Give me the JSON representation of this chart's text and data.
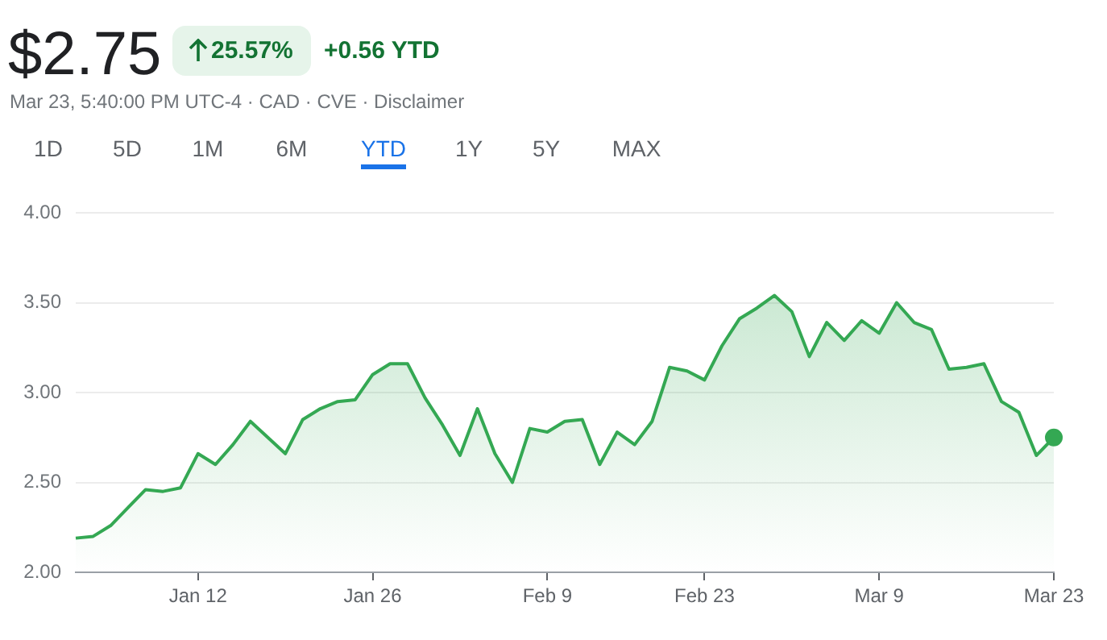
{
  "chart_data": {
    "type": "area",
    "title": "$2.75",
    "subtitle": "Mar 23, 5:40:00 PM UTC-4 · CAD · CVE · Disclaimer",
    "annotations": [
      "25.57%",
      "+0.56 YTD",
      "1D",
      "5D",
      "1M",
      "6M",
      "YTD",
      "1Y",
      "5Y",
      "MAX"
    ],
    "categories": [
      null,
      null,
      null,
      null,
      null,
      null,
      null,
      "Jan 12",
      null,
      null,
      null,
      null,
      null,
      null,
      null,
      null,
      null,
      "Jan 26",
      null,
      null,
      null,
      null,
      null,
      null,
      null,
      null,
      null,
      "Feb 9",
      null,
      null,
      null,
      null,
      null,
      null,
      null,
      null,
      "Feb 23",
      null,
      null,
      null,
      null,
      null,
      null,
      null,
      null,
      null,
      "Mar 9",
      null,
      null,
      null,
      null,
      null,
      null,
      null,
      null,
      null,
      "Mar 23"
    ],
    "series": [
      {
        "color": "#34a853",
        "marker": "none",
        "values": [
          2.19,
          2.2,
          2.26,
          2.36,
          2.46,
          2.45,
          2.47,
          2.66,
          2.6,
          2.71,
          2.84,
          2.75,
          2.66,
          2.85,
          2.91,
          2.95,
          2.96,
          3.1,
          3.16,
          3.16,
          2.97,
          2.82,
          2.65,
          2.91,
          2.66,
          2.5,
          2.8,
          2.78,
          2.84,
          2.85,
          2.6,
          2.78,
          2.71,
          2.84,
          3.14,
          3.12,
          3.07,
          3.26,
          3.41,
          3.47,
          3.54,
          3.45,
          3.2,
          3.39,
          3.29,
          3.4,
          3.33,
          3.5,
          3.39,
          3.35,
          3.13,
          3.14,
          3.16,
          2.95,
          2.89,
          2.65,
          2.75
        ]
      },
      {
        "type": "scatter",
        "color": "#34a853",
        "marker": "circle",
        "x": [
          "Mar 23"
        ],
        "values": [
          2.75
        ]
      }
    ],
    "ylim": [
      2,
      4
    ],
    "yticks": [
      {
        "value": 2,
        "label": "2.00"
      },
      {
        "value": 2.5,
        "label": "2.50"
      },
      {
        "value": 3,
        "label": "3.00"
      },
      {
        "value": 3.5,
        "label": "3.50"
      },
      {
        "value": 4,
        "label": "4.00"
      }
    ],
    "grid": "y",
    "line_style": "solid"
  }
}
